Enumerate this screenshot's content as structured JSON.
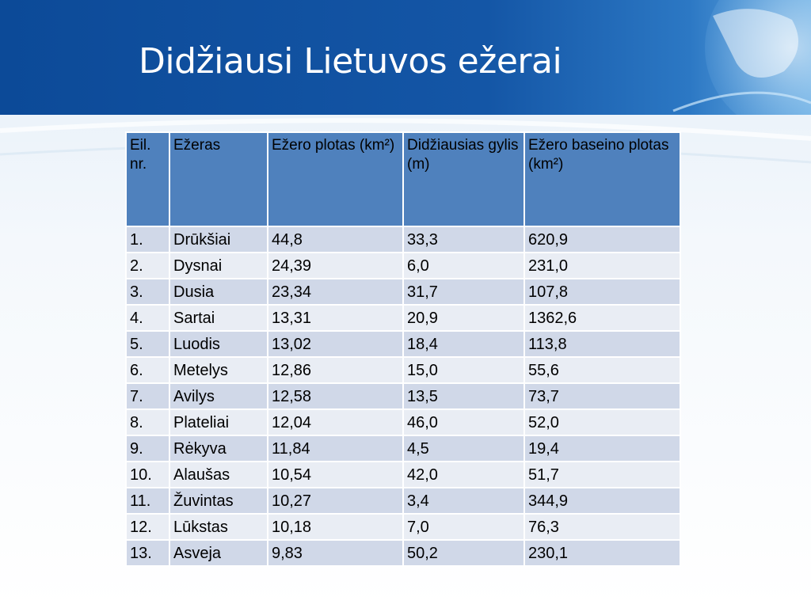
{
  "header": {
    "title": "Didžiausi Lietuvos ežerai"
  },
  "table": {
    "columns": [
      "Eil. nr.",
      "Ežeras",
      "Ežero plotas (km²)",
      "Didžiausias gylis (m)",
      "Ežero baseino plotas (km²)"
    ],
    "rows": [
      [
        "1.",
        "Drūkšiai",
        "44,8",
        "33,3",
        "620,9"
      ],
      [
        "2.",
        "Dysnai",
        "24,39",
        "6,0",
        "231,0"
      ],
      [
        "3.",
        "Dusia",
        "23,34",
        "31,7",
        "107,8"
      ],
      [
        "4.",
        "Sartai",
        "13,31",
        "20,9",
        "1362,6"
      ],
      [
        "5.",
        "Luodis",
        "13,02",
        "18,4",
        "113,8"
      ],
      [
        "6.",
        "Metelys",
        "12,86",
        "15,0",
        "55,6"
      ],
      [
        "7.",
        "Avilys",
        "12,58",
        "13,5",
        "73,7"
      ],
      [
        "8.",
        "Plateliai",
        "12,04",
        "46,0",
        "52,0"
      ],
      [
        "9.",
        "Rėkyva",
        "11,84",
        "4,5",
        "19,4"
      ],
      [
        "10.",
        "Alaušas",
        "10,54",
        "42,0",
        "51,7"
      ],
      [
        "11.",
        "Žuvintas",
        "10,27",
        "3,4",
        "344,9"
      ],
      [
        "12.",
        "Lūkstas",
        "10,18",
        "7,0",
        "76,3"
      ],
      [
        "13.",
        "Asveja",
        "9,83",
        "50,2",
        "230,1"
      ]
    ]
  }
}
